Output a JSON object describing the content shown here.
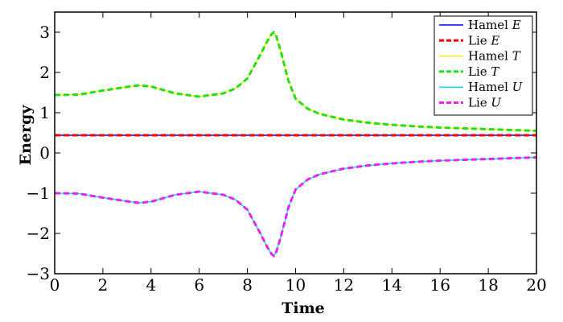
{
  "chart_data": {
    "type": "line",
    "xlabel": "Time",
    "ylabel": "Energy",
    "xlim": [
      0,
      20
    ],
    "ylim": [
      -3,
      3.5
    ],
    "xticks": [
      0,
      2,
      4,
      6,
      8,
      10,
      12,
      14,
      16,
      18,
      20
    ],
    "yticks": [
      -3,
      -2,
      -1,
      0,
      1,
      2,
      3
    ],
    "grid": false,
    "legend_position": "top-right",
    "series": [
      {
        "name": "Hamel",
        "symbol": "E",
        "color": "#0000ff",
        "style": "solid",
        "x": [
          0,
          20
        ],
        "y": [
          0.44,
          0.44
        ]
      },
      {
        "name": "Lie",
        "symbol": "E",
        "color": "#ff0000",
        "style": "dashed",
        "x": [
          0,
          20
        ],
        "y": [
          0.44,
          0.44
        ]
      },
      {
        "name": "Hamel",
        "symbol": "T",
        "color": "#ffee00",
        "style": "solid",
        "x": [
          0,
          1,
          2,
          3,
          3.5,
          4,
          5,
          6,
          7,
          7.5,
          8,
          8.5,
          8.8,
          9,
          9.1,
          9.2,
          9.4,
          9.7,
          10,
          10.5,
          11,
          12,
          13,
          14,
          15,
          16,
          17,
          18,
          19,
          20
        ],
        "y": [
          1.44,
          1.45,
          1.55,
          1.64,
          1.68,
          1.65,
          1.48,
          1.4,
          1.48,
          1.6,
          1.85,
          2.4,
          2.75,
          2.95,
          3.0,
          2.9,
          2.5,
          1.8,
          1.35,
          1.1,
          0.97,
          0.83,
          0.75,
          0.7,
          0.66,
          0.63,
          0.61,
          0.59,
          0.57,
          0.55
        ]
      },
      {
        "name": "Lie",
        "symbol": "T",
        "color": "#22dd22",
        "style": "dashed",
        "x": [
          0,
          1,
          2,
          3,
          3.5,
          4,
          5,
          6,
          7,
          7.5,
          8,
          8.5,
          8.8,
          9,
          9.1,
          9.2,
          9.4,
          9.7,
          10,
          10.5,
          11,
          12,
          13,
          14,
          15,
          16,
          17,
          18,
          19,
          20
        ],
        "y": [
          1.44,
          1.45,
          1.55,
          1.64,
          1.68,
          1.65,
          1.48,
          1.4,
          1.48,
          1.6,
          1.85,
          2.4,
          2.75,
          2.95,
          3.0,
          2.9,
          2.5,
          1.8,
          1.35,
          1.1,
          0.97,
          0.83,
          0.75,
          0.7,
          0.66,
          0.63,
          0.61,
          0.59,
          0.57,
          0.55
        ]
      },
      {
        "name": "Hamel",
        "symbol": "U",
        "color": "#00e5ee",
        "style": "solid",
        "x": [
          0,
          1,
          2,
          3,
          3.5,
          4,
          5,
          6,
          7,
          7.5,
          8,
          8.5,
          8.8,
          9,
          9.1,
          9.2,
          9.4,
          9.7,
          10,
          10.5,
          11,
          12,
          13,
          14,
          15,
          16,
          17,
          18,
          19,
          20
        ],
        "y": [
          -1.0,
          -1.01,
          -1.11,
          -1.2,
          -1.24,
          -1.21,
          -1.04,
          -0.96,
          -1.04,
          -1.16,
          -1.41,
          -1.96,
          -2.31,
          -2.51,
          -2.56,
          -2.46,
          -2.06,
          -1.36,
          -0.91,
          -0.66,
          -0.53,
          -0.39,
          -0.31,
          -0.26,
          -0.22,
          -0.19,
          -0.17,
          -0.15,
          -0.13,
          -0.11
        ]
      },
      {
        "name": "Lie",
        "symbol": "U",
        "color": "#ee22ee",
        "style": "dashed",
        "x": [
          0,
          1,
          2,
          3,
          3.5,
          4,
          5,
          6,
          7,
          7.5,
          8,
          8.5,
          8.8,
          9,
          9.1,
          9.2,
          9.4,
          9.7,
          10,
          10.5,
          11,
          12,
          13,
          14,
          15,
          16,
          17,
          18,
          19,
          20
        ],
        "y": [
          -1.0,
          -1.01,
          -1.11,
          -1.2,
          -1.24,
          -1.21,
          -1.04,
          -0.96,
          -1.04,
          -1.16,
          -1.41,
          -1.96,
          -2.31,
          -2.51,
          -2.56,
          -2.46,
          -2.06,
          -1.36,
          -0.91,
          -0.66,
          -0.53,
          -0.39,
          -0.31,
          -0.26,
          -0.22,
          -0.19,
          -0.17,
          -0.15,
          -0.13,
          -0.11
        ]
      }
    ]
  }
}
